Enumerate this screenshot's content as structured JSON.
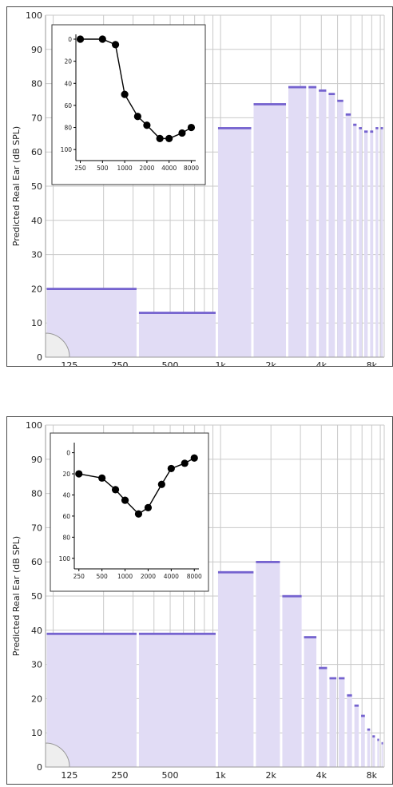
{
  "chart_data": [
    {
      "type": "bar",
      "ylabel": "Predicted Real Ear (dB SPL)",
      "ylim": [
        0,
        100
      ],
      "yticks": [
        "0",
        "10",
        "20",
        "30",
        "40",
        "50",
        "60",
        "70",
        "80",
        "90",
        "100"
      ],
      "x_scale": "log",
      "xticks": [
        "125",
        "250",
        "500",
        "1k",
        "2k",
        "4k",
        "8k"
      ],
      "grid": true,
      "bands": [
        {
          "from_hz": 90,
          "to_hz": 320,
          "value": 20
        },
        {
          "from_hz": 320,
          "to_hz": 950,
          "value": 13
        },
        {
          "from_hz": 950,
          "to_hz": 1550,
          "value": 67
        },
        {
          "from_hz": 1550,
          "to_hz": 2500,
          "value": 74
        },
        {
          "from_hz": 2500,
          "to_hz": 3300,
          "value": 79
        },
        {
          "from_hz": 3300,
          "to_hz": 3800,
          "value": 79
        },
        {
          "from_hz": 3800,
          "to_hz": 4350,
          "value": 78
        },
        {
          "from_hz": 4350,
          "to_hz": 4900,
          "value": 77
        },
        {
          "from_hz": 4900,
          "to_hz": 5500,
          "value": 75
        },
        {
          "from_hz": 5500,
          "to_hz": 6100,
          "value": 71
        },
        {
          "from_hz": 6100,
          "to_hz": 6600,
          "value": 68
        },
        {
          "from_hz": 6600,
          "to_hz": 7100,
          "value": 67
        },
        {
          "from_hz": 7100,
          "to_hz": 7700,
          "value": 66
        },
        {
          "from_hz": 7700,
          "to_hz": 8300,
          "value": 66
        },
        {
          "from_hz": 8300,
          "to_hz": 8900,
          "value": 67
        },
        {
          "from_hz": 8900,
          "to_hz": 9500,
          "value": 67
        }
      ],
      "inset": {
        "type": "line",
        "x": [
          250,
          500,
          750,
          1000,
          1500,
          2000,
          3000,
          4000,
          6000,
          8000
        ],
        "x_scale": "log",
        "y": [
          0,
          0,
          5,
          50,
          70,
          78,
          90,
          90,
          85,
          80
        ],
        "y_inverted": true,
        "ylim": [
          0,
          110
        ],
        "yticks": [
          "0",
          "20",
          "40",
          "60",
          "80",
          "100"
        ],
        "xticks": [
          "250",
          "500",
          "1000",
          "2000",
          "4000",
          "8000"
        ]
      }
    },
    {
      "type": "bar",
      "ylabel": "Predicted Real Ear (dB SPL)",
      "ylim": [
        0,
        100
      ],
      "yticks": [
        "0",
        "10",
        "20",
        "30",
        "40",
        "50",
        "60",
        "70",
        "80",
        "90",
        "100"
      ],
      "x_scale": "log",
      "xticks": [
        "125",
        "250",
        "500",
        "1k",
        "2k",
        "4k",
        "8k"
      ],
      "grid": true,
      "bands": [
        {
          "from_hz": 90,
          "to_hz": 320,
          "value": 39
        },
        {
          "from_hz": 320,
          "to_hz": 950,
          "value": 39
        },
        {
          "from_hz": 950,
          "to_hz": 1600,
          "value": 57
        },
        {
          "from_hz": 1600,
          "to_hz": 2300,
          "value": 60
        },
        {
          "from_hz": 2300,
          "to_hz": 3100,
          "value": 50
        },
        {
          "from_hz": 3100,
          "to_hz": 3800,
          "value": 38
        },
        {
          "from_hz": 3800,
          "to_hz": 4400,
          "value": 29
        },
        {
          "from_hz": 4400,
          "to_hz": 5000,
          "value": 26
        },
        {
          "from_hz": 5000,
          "to_hz": 5600,
          "value": 26
        },
        {
          "from_hz": 5600,
          "to_hz": 6200,
          "value": 21
        },
        {
          "from_hz": 6200,
          "to_hz": 6800,
          "value": 18
        },
        {
          "from_hz": 6800,
          "to_hz": 7400,
          "value": 15
        },
        {
          "from_hz": 7400,
          "to_hz": 7950,
          "value": 11
        },
        {
          "from_hz": 7950,
          "to_hz": 8500,
          "value": 9
        },
        {
          "from_hz": 8500,
          "to_hz": 9000,
          "value": 8
        },
        {
          "from_hz": 9000,
          "to_hz": 9500,
          "value": 7
        }
      ],
      "inset": {
        "type": "line",
        "x": [
          250,
          500,
          750,
          1000,
          1500,
          2000,
          3000,
          4000,
          6000,
          8000
        ],
        "x_scale": "log",
        "y": [
          20,
          24,
          35,
          45,
          58,
          52,
          30,
          15,
          10,
          5
        ],
        "y_inverted": true,
        "ylim": [
          -5,
          110
        ],
        "yticks": [
          "0",
          "20",
          "40",
          "60",
          "80",
          "100"
        ],
        "xticks": [
          "250",
          "500",
          "1000",
          "2000",
          "4000",
          "8000"
        ]
      }
    }
  ],
  "colors": {
    "bar_fill": "#e1dcf5",
    "bar_top": "#7563cf",
    "grid": "#c9c9c9",
    "axis": "#9a9a9a",
    "border": "#4a4a4a",
    "marker": "#000000",
    "quarter_circle": "#eeeeee"
  }
}
